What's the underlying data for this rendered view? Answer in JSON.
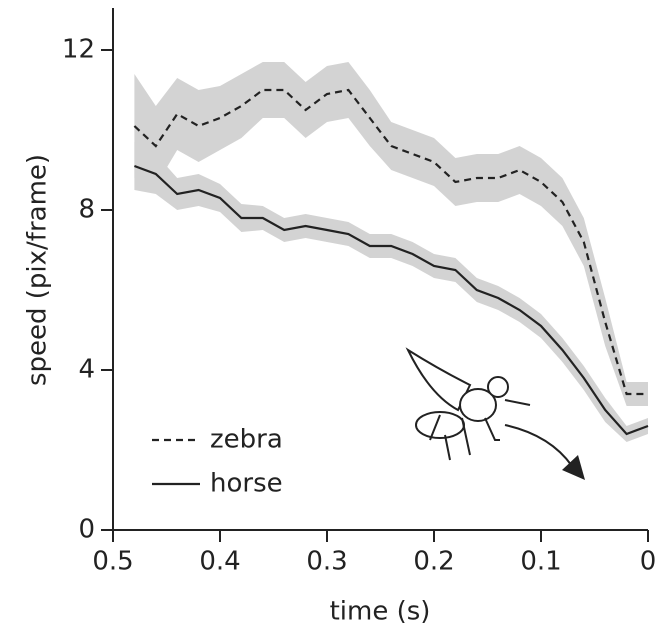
{
  "chart_data": {
    "type": "line",
    "xlabel": "time (s)",
    "ylabel": "speed (pix/frame)",
    "x": [
      0.48,
      0.46,
      0.44,
      0.42,
      0.4,
      0.38,
      0.36,
      0.34,
      0.32,
      0.3,
      0.28,
      0.26,
      0.24,
      0.22,
      0.2,
      0.18,
      0.16,
      0.14,
      0.12,
      0.1,
      0.08,
      0.06,
      0.04,
      0.02,
      0.0
    ],
    "series": [
      {
        "name": "zebra",
        "color": "#222222",
        "band_color": "#d3d3d3",
        "dash": true,
        "values": [
          10.1,
          9.6,
          10.4,
          10.1,
          10.3,
          10.6,
          11.0,
          11.0,
          10.5,
          10.9,
          11.0,
          10.3,
          9.6,
          9.4,
          9.2,
          8.7,
          8.8,
          8.8,
          9.0,
          8.7,
          8.2,
          7.2,
          5.2,
          3.4,
          3.4
        ],
        "error": [
          1.3,
          1.0,
          0.9,
          0.9,
          0.8,
          0.8,
          0.7,
          0.7,
          0.7,
          0.7,
          0.7,
          0.7,
          0.6,
          0.6,
          0.6,
          0.6,
          0.6,
          0.6,
          0.6,
          0.6,
          0.6,
          0.6,
          0.6,
          0.3,
          0.3
        ]
      },
      {
        "name": "horse",
        "color": "#222222",
        "band_color": "#d3d3d3",
        "dash": false,
        "values": [
          9.1,
          8.9,
          8.4,
          8.5,
          8.3,
          7.8,
          7.8,
          7.5,
          7.6,
          7.5,
          7.4,
          7.1,
          7.1,
          6.9,
          6.6,
          6.5,
          6.0,
          5.8,
          5.5,
          5.1,
          4.5,
          3.8,
          3.0,
          2.4,
          2.6
        ],
        "error": [
          0.6,
          0.5,
          0.4,
          0.4,
          0.35,
          0.35,
          0.3,
          0.3,
          0.3,
          0.3,
          0.3,
          0.3,
          0.3,
          0.3,
          0.3,
          0.3,
          0.3,
          0.3,
          0.3,
          0.3,
          0.3,
          0.3,
          0.3,
          0.2,
          0.2
        ]
      }
    ],
    "xlim": [
      0.5,
      0
    ],
    "xticks": [
      0.5,
      0.4,
      0.3,
      0.2,
      0.1,
      0
    ],
    "ylim": [
      0,
      13
    ],
    "yticks": [
      0,
      4,
      8,
      12
    ]
  }
}
